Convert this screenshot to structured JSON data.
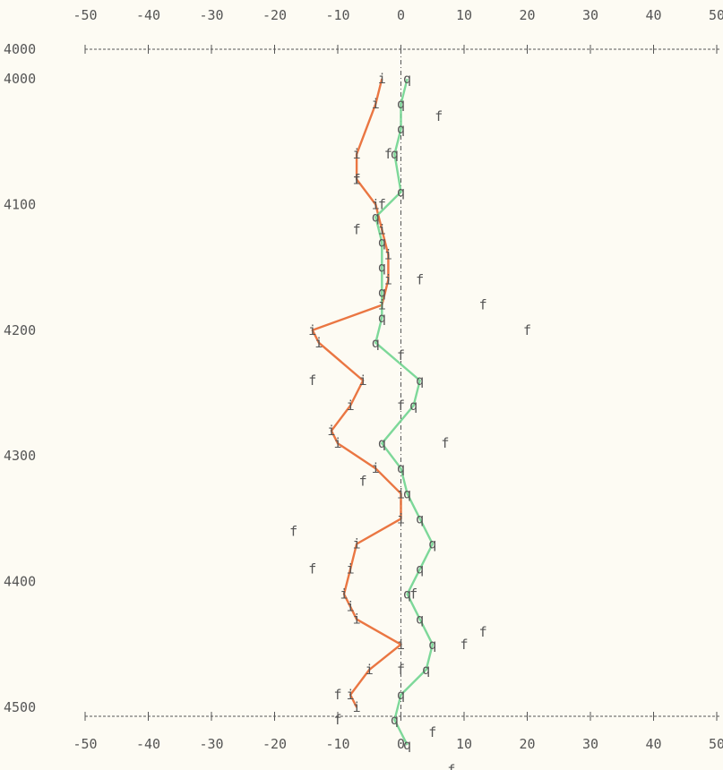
{
  "chart_data": {
    "type": "line",
    "title": "",
    "xlabel": "",
    "ylabel": "",
    "xlim": [
      -50,
      50
    ],
    "ylim": [
      4000,
      4500
    ],
    "x_ticks": [
      "-50",
      "-40",
      "-30",
      "-20",
      "-10",
      "0",
      "10",
      "20",
      "30",
      "40",
      "50"
    ],
    "y_ticks": [
      "4000",
      "4100",
      "4200",
      "4300",
      "4400",
      "4500"
    ],
    "y_ticks_repeat": [
      "4000"
    ],
    "zero_line": 0,
    "series": [
      {
        "marker": "i",
        "color": "#e8672f",
        "line": true,
        "points": [
          [
            -3,
            4000
          ],
          [
            -4,
            4020
          ],
          [
            -7,
            4060
          ],
          [
            -7,
            4080
          ],
          [
            -4,
            4100
          ],
          [
            -3,
            4120
          ],
          [
            -2,
            4140
          ],
          [
            -2,
            4160
          ],
          [
            -3,
            4180
          ],
          [
            -14,
            4200
          ],
          [
            -13,
            4210
          ],
          [
            -6,
            4240
          ],
          [
            -8,
            4260
          ],
          [
            -11,
            4280
          ],
          [
            -10,
            4290
          ],
          [
            -4,
            4310
          ],
          [
            0,
            4330
          ],
          [
            0,
            4350
          ],
          [
            -7,
            4370
          ],
          [
            -8,
            4390
          ],
          [
            -9,
            4410
          ],
          [
            -8,
            4420
          ],
          [
            -7,
            4430
          ],
          [
            0,
            4450
          ],
          [
            -5,
            4470
          ],
          [
            -8,
            4490
          ],
          [
            -7,
            4500
          ]
        ]
      },
      {
        "marker": "q",
        "color": "#6fd48f",
        "line": true,
        "points": [
          [
            1,
            4000
          ],
          [
            0,
            4020
          ],
          [
            0,
            4040
          ],
          [
            -1,
            4060
          ],
          [
            0,
            4090
          ],
          [
            -4,
            4110
          ],
          [
            -3,
            4130
          ],
          [
            -3,
            4150
          ],
          [
            -3,
            4170
          ],
          [
            -3,
            4190
          ],
          [
            -4,
            4210
          ],
          [
            3,
            4240
          ],
          [
            2,
            4260
          ],
          [
            -3,
            4290
          ],
          [
            0,
            4310
          ],
          [
            1,
            4330
          ],
          [
            3,
            4350
          ],
          [
            5,
            4370
          ],
          [
            3,
            4390
          ],
          [
            1,
            4410
          ],
          [
            3,
            4430
          ],
          [
            5,
            4450
          ],
          [
            4,
            4470
          ],
          [
            0,
            4490
          ],
          [
            -1,
            4510
          ],
          [
            1,
            4530
          ]
        ]
      },
      {
        "marker": "f",
        "color": "#555555",
        "line": false,
        "points": [
          [
            6,
            4030
          ],
          [
            -2,
            4060
          ],
          [
            -7,
            4080
          ],
          [
            -3,
            4100
          ],
          [
            -7,
            4120
          ],
          [
            3,
            4160
          ],
          [
            13,
            4180
          ],
          [
            20,
            4200
          ],
          [
            0,
            4220
          ],
          [
            -14,
            4240
          ],
          [
            0,
            4260
          ],
          [
            7,
            4290
          ],
          [
            -6,
            4320
          ],
          [
            -17,
            4360
          ],
          [
            -14,
            4390
          ],
          [
            2,
            4410
          ],
          [
            13,
            4440
          ],
          [
            10,
            4450
          ],
          [
            0,
            4470
          ],
          [
            -10,
            4490
          ],
          [
            -10,
            4510
          ],
          [
            5,
            4520
          ],
          [
            8,
            4550
          ]
        ]
      }
    ]
  }
}
